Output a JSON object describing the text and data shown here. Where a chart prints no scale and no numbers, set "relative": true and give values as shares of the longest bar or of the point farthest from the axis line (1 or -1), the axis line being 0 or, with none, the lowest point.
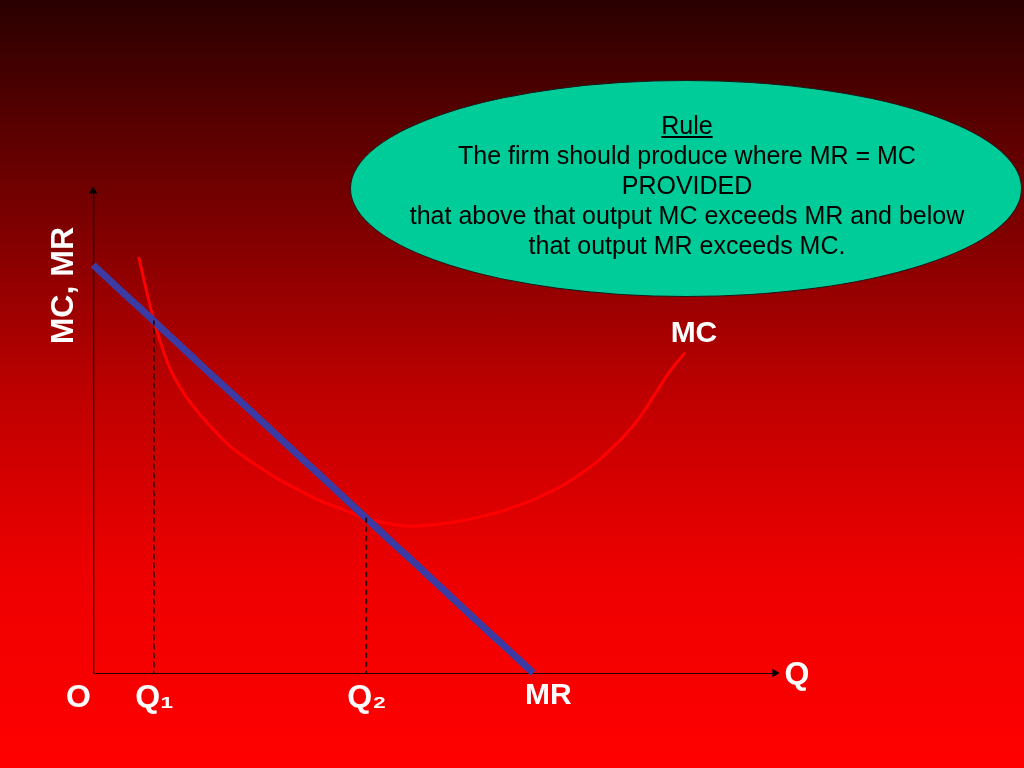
{
  "chart_data": {
    "type": "line",
    "relative": true,
    "xlabel": "Q",
    "ylabel": "MC, MR",
    "categories": [
      "O",
      null,
      null,
      null,
      null,
      "Q₁",
      null,
      null,
      null,
      null,
      null,
      null,
      null,
      null,
      null,
      null,
      null,
      null,
      null,
      "Q₂",
      null,
      null,
      null,
      null,
      null,
      null,
      null,
      null,
      null,
      null,
      null,
      null,
      null,
      null,
      null,
      null,
      null,
      null,
      null,
      null,
      null,
      null,
      null,
      null,
      null,
      null,
      null
    ],
    "annotations": [
      "Rule",
      "The firm should produce where MR = MC",
      "PROVIDED",
      "that above that output MC exceeds MR and below that output MR exceeds MC."
    ],
    "series": [
      {
        "name": "MC",
        "color": "#ff0000",
        "values": [
          null,
          null,
          null,
          null,
          1.0,
          0.848,
          0.737,
          0.671,
          0.623,
          0.582,
          0.546,
          0.518,
          0.494,
          0.47,
          0.45,
          0.431,
          0.413,
          0.399,
          0.385,
          0.371,
          0.363,
          0.356,
          0.353,
          0.355,
          0.359,
          0.364,
          0.371,
          0.38,
          0.39,
          0.403,
          0.416,
          0.434,
          0.452,
          0.476,
          0.502,
          0.534,
          0.57,
          0.614,
          0.669,
          0.725,
          0.77,
          null,
          null,
          null,
          null,
          null,
          null
        ]
      },
      {
        "name": "MR",
        "color": "#3b3ba3",
        "values": [
          null,
          0.981,
          0.947,
          0.913,
          0.88,
          0.846,
          0.812,
          0.778,
          0.744,
          0.71,
          0.677,
          0.643,
          0.609,
          0.575,
          0.541,
          0.507,
          0.474,
          0.44,
          0.406,
          0.372,
          0.338,
          0.304,
          0.271,
          0.237,
          0.203,
          0.169,
          0.135,
          0.101,
          0.068,
          0.034,
          0,
          null,
          null,
          null,
          null,
          null,
          null,
          null,
          null,
          null,
          null,
          null,
          null,
          null,
          null,
          null,
          null
        ]
      },
      {
        "type": "bar",
        "color": "#2a0000",
        "line_style": "dashed",
        "values": [
          null,
          null,
          null,
          null,
          null,
          0.846,
          null,
          null,
          null,
          null,
          null,
          null,
          null,
          null,
          null,
          null,
          null,
          null,
          null,
          0.372,
          null,
          null,
          null,
          null,
          null,
          null,
          null,
          null,
          null,
          null,
          null,
          null,
          null,
          null,
          null,
          null,
          null,
          null,
          null,
          null,
          null,
          null,
          null,
          null,
          null,
          null,
          null
        ]
      }
    ]
  }
}
